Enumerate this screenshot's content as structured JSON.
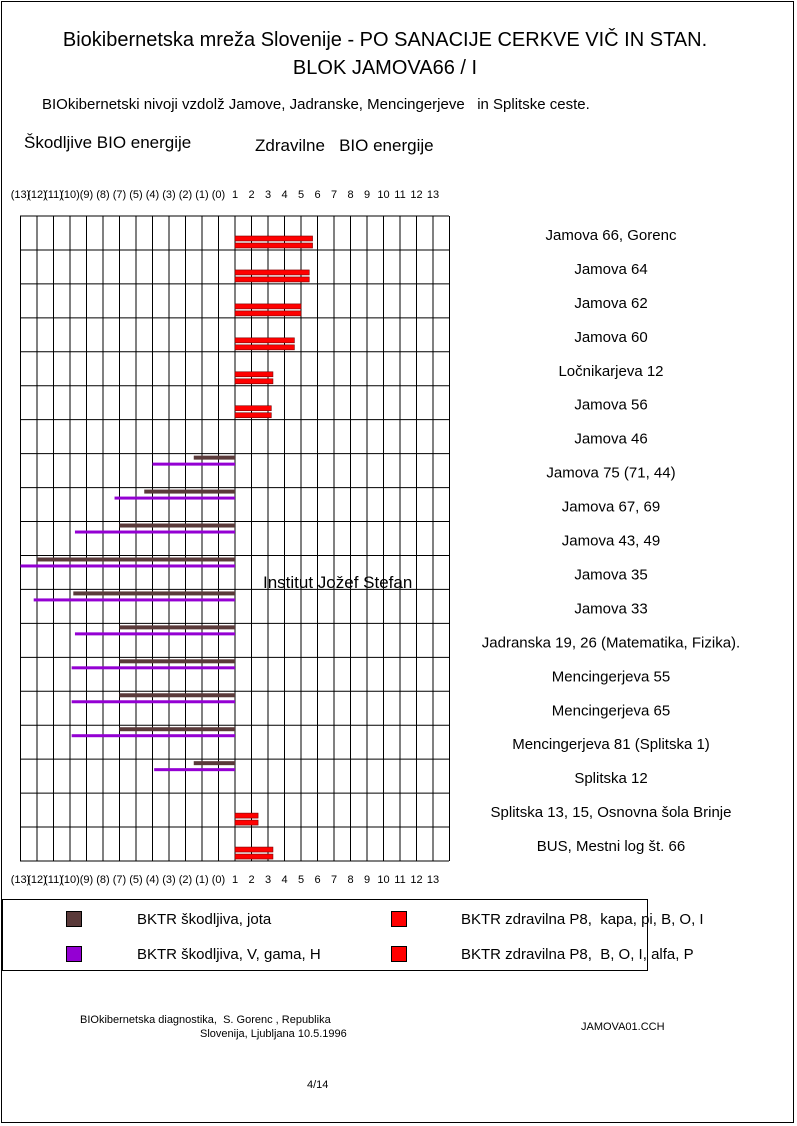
{
  "title_line1": "Biokibernetska mreža Slovenije - PO SANACIJE CERKVE VIČ IN STAN.",
  "title_line2": "BLOK JAMOVA66 / I",
  "subtitle": "BIOkibernetski nivoji vzdolž Jamove, Jadranske, Mencingerjeve   in Splitske ceste.",
  "label_harmful": "Škodljive BIO energije",
  "label_healthy": "Zdravilne   BIO energije",
  "annotation": "Institut Jožef Stefan",
  "legend": [
    {
      "label": "BKTR škodljiva, jota",
      "color": "#5a3a3a"
    },
    {
      "label": "BKTR zdravilna P8,  kapa, pi, B, O, I",
      "color": "#ff0000"
    },
    {
      "label": "BKTR škodljiva, V, gama, H",
      "color": "#9400d3"
    },
    {
      "label": "BKTR zdravilna P8,  B, O, I, alfa, P",
      "color": "#ff0000"
    }
  ],
  "footer_left_1": "BIOkibernetska diagnostika,  S. Gorenc , Republika",
  "footer_left_2": "Slovenija, Ljubljana 10.5.1996",
  "footer_right": "JAMOVA01.CCH",
  "page_number": "4/14",
  "chart_data": {
    "type": "bar",
    "orientation": "horizontal",
    "xlim": [
      -13,
      13
    ],
    "x_ticks": [
      "(13)",
      "(12)",
      "(11)",
      "(10)",
      "(9)",
      "(8)",
      "(7)",
      "(5)",
      "(4)",
      "(3)",
      "(2)",
      "(1)",
      "(0)",
      "1",
      "2",
      "3",
      "4",
      "5",
      "6",
      "7",
      "8",
      "9",
      "10",
      "11",
      "12",
      "13"
    ],
    "categories": [
      "Jamova 66, Gorenc",
      "Jamova 64",
      "Jamova 62",
      "Jamova 60",
      "Ločnikarjeva 12",
      "Jamova 56",
      "Jamova 46",
      "Jamova 75 (71, 44)",
      "Jamova 67, 69",
      "Jamova 43, 49",
      "Jamova 35",
      "Jamova 33",
      "Jadranska 19, 26 (Matematika, Fizika).",
      "Mencingerjeva 55",
      "Mencingerjeva 65",
      "Mencingerjeva 81 (Splitska 1)",
      "Splitska 12",
      "Splitska 13, 15, Osnovna šola Brinje",
      "BUS, Mestni log št. 66"
    ],
    "series": [
      {
        "name": "BKTR zdravilna P8,  kapa, pi, B, O, I",
        "color": "#ff0000",
        "values": [
          4.7,
          4.5,
          4.0,
          3.6,
          2.3,
          2.2,
          0,
          0,
          0,
          0,
          0,
          0,
          0,
          0,
          0,
          0,
          0,
          1.4,
          2.3
        ]
      },
      {
        "name": "BKTR zdravilna P8,  B, O, I, alfa, P",
        "color": "#ff0000",
        "values": [
          4.7,
          4.5,
          4.0,
          3.6,
          2.3,
          2.2,
          0,
          0,
          0,
          0,
          0,
          0,
          0,
          0,
          0,
          0,
          0,
          1.4,
          2.3
        ]
      },
      {
        "name": "BKTR škodljiva, jota",
        "color": "#5a3a3a",
        "values": [
          0,
          0,
          0,
          0,
          0,
          0,
          0,
          -2.5,
          -5.5,
          -7.0,
          -12.0,
          -9.8,
          -7.0,
          -7.0,
          -7.0,
          -7.0,
          -2.5,
          0,
          0
        ]
      },
      {
        "name": "BKTR škodljiva, V, gama, H",
        "color": "#9400d3",
        "values": [
          0,
          0,
          0,
          0,
          0,
          0,
          0,
          -5.0,
          -7.3,
          -9.7,
          -13.0,
          -12.2,
          -9.7,
          -9.9,
          -9.9,
          -9.9,
          -4.9,
          0,
          0
        ]
      }
    ]
  }
}
